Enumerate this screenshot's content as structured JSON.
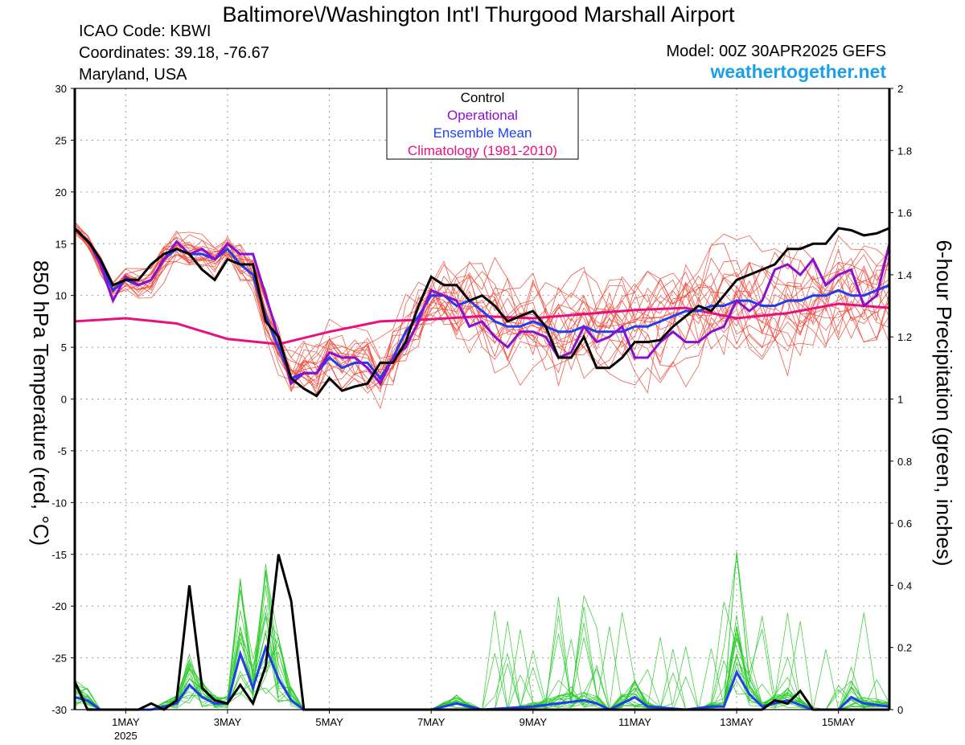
{
  "header": {
    "title": "Baltimore\\/Washington Int'l Thurgood Marshall Airport",
    "icao": "ICAO Code: KBWI",
    "coordinates": "Coordinates: 39.18, -76.67",
    "location": "Maryland, USA",
    "model": "Model: 00Z 30APR2025 GEFS",
    "site": "weathertogether.net"
  },
  "colors": {
    "control": "#000000",
    "operational": "#8a10d0",
    "ensemble_mean": "#1f3fef",
    "climatology": "#e8107f",
    "members_temp": "#f04a3a",
    "members_precip": "#2ecc2e",
    "site": "#1a9fe8"
  },
  "chart_data": {
    "type": "line",
    "left_axis": {
      "label": "850 hPa Temperature (red, °C)",
      "range": [
        -30,
        30
      ],
      "ticks": [
        "30",
        "25",
        "20",
        "15",
        "10",
        "5",
        "0",
        "-5",
        "-10",
        "-15",
        "-20",
        "-25",
        "-30"
      ]
    },
    "right_axis": {
      "label": "6-hour Precipitation (green, inches)",
      "range": [
        0,
        2
      ],
      "ticks": [
        "2",
        "1.8",
        "1.6",
        "1.4",
        "1.2",
        "1",
        "0.8",
        "0.6",
        "0.4",
        "0.2",
        "0"
      ]
    },
    "x_axis": {
      "range_days": [
        0,
        16
      ],
      "ticks": [
        {
          "label": "1MAY",
          "sub": "2025",
          "day": 1
        },
        {
          "label": "3MAY",
          "day": 3
        },
        {
          "label": "5MAY",
          "day": 5
        },
        {
          "label": "7MAY",
          "day": 7
        },
        {
          "label": "9MAY",
          "day": 9
        },
        {
          "label": "11MAY",
          "day": 11
        },
        {
          "label": "13MAY",
          "day": 13
        },
        {
          "label": "15MAY",
          "day": 15
        }
      ]
    },
    "grid": true,
    "legend": {
      "position": "top-center",
      "entries": [
        {
          "label": "Control",
          "color": "#000000"
        },
        {
          "label": "Operational",
          "color": "#8a10d0"
        },
        {
          "label": "Ensemble Mean",
          "color": "#1f3fef"
        },
        {
          "label": "Climatology (1981-2010)",
          "color": "#e8107f"
        }
      ]
    },
    "temperature_series": {
      "control": [
        [
          0,
          16.5
        ],
        [
          0.3,
          15
        ],
        [
          0.5,
          13.5
        ],
        [
          0.75,
          11
        ],
        [
          1,
          11.5
        ],
        [
          1.25,
          11.5
        ],
        [
          1.5,
          13
        ],
        [
          1.75,
          14
        ],
        [
          2,
          14.5
        ],
        [
          2.25,
          14
        ],
        [
          2.5,
          12.5
        ],
        [
          2.75,
          11.5
        ],
        [
          3,
          13.5
        ],
        [
          3.25,
          13
        ],
        [
          3.5,
          13
        ],
        [
          3.75,
          7.5
        ],
        [
          4,
          6
        ],
        [
          4.25,
          2
        ],
        [
          4.5,
          1
        ],
        [
          4.75,
          0.3
        ],
        [
          5,
          2
        ],
        [
          5.25,
          0.8
        ],
        [
          5.5,
          1.2
        ],
        [
          5.75,
          1.5
        ],
        [
          6,
          3.5
        ],
        [
          6.25,
          3.5
        ],
        [
          6.5,
          5.5
        ],
        [
          6.75,
          9
        ],
        [
          7,
          11.8
        ],
        [
          7.25,
          11
        ],
        [
          7.5,
          11
        ],
        [
          7.75,
          9.5
        ],
        [
          8,
          10
        ],
        [
          8.25,
          9
        ],
        [
          8.5,
          7.5
        ],
        [
          8.75,
          8
        ],
        [
          9,
          8.5
        ],
        [
          9.25,
          7
        ],
        [
          9.5,
          4
        ],
        [
          9.75,
          4
        ],
        [
          10,
          6
        ],
        [
          10.25,
          3
        ],
        [
          10.5,
          3
        ],
        [
          10.75,
          4
        ],
        [
          11,
          5.5
        ],
        [
          11.25,
          5.5
        ],
        [
          11.5,
          5.7
        ],
        [
          11.75,
          7
        ],
        [
          12,
          8
        ],
        [
          12.25,
          9
        ],
        [
          12.5,
          8.5
        ],
        [
          12.75,
          10
        ],
        [
          13,
          11.5
        ],
        [
          13.25,
          12
        ],
        [
          13.5,
          12.5
        ],
        [
          13.75,
          13
        ],
        [
          14,
          14.5
        ],
        [
          14.25,
          14.5
        ],
        [
          14.5,
          15
        ],
        [
          14.75,
          15
        ],
        [
          15,
          16.5
        ],
        [
          15.25,
          16.3
        ],
        [
          15.5,
          15.8
        ],
        [
          15.75,
          16
        ],
        [
          16,
          16.5
        ]
      ],
      "operational": [
        [
          0,
          16.5
        ],
        [
          0.3,
          15
        ],
        [
          0.5,
          13
        ],
        [
          0.75,
          9.5
        ],
        [
          1,
          11.8
        ],
        [
          1.25,
          11
        ],
        [
          1.5,
          11.5
        ],
        [
          1.75,
          13.5
        ],
        [
          2,
          15.2
        ],
        [
          2.25,
          14
        ],
        [
          2.5,
          14.5
        ],
        [
          2.75,
          13.5
        ],
        [
          3,
          15
        ],
        [
          3.25,
          14
        ],
        [
          3.5,
          14
        ],
        [
          3.75,
          10
        ],
        [
          4,
          6
        ],
        [
          4.25,
          1.5
        ],
        [
          4.5,
          2.5
        ],
        [
          4.75,
          2.5
        ],
        [
          5,
          4.5
        ],
        [
          5.25,
          4
        ],
        [
          5.5,
          4
        ],
        [
          5.75,
          3
        ],
        [
          6,
          1.5
        ],
        [
          6.25,
          4
        ],
        [
          6.5,
          5
        ],
        [
          6.75,
          7.5
        ],
        [
          7,
          10.5
        ],
        [
          7.25,
          10
        ],
        [
          7.5,
          9.5
        ],
        [
          7.75,
          7
        ],
        [
          8,
          7.5
        ],
        [
          8.25,
          6
        ],
        [
          8.5,
          5
        ],
        [
          8.75,
          6.5
        ],
        [
          9,
          6.5
        ],
        [
          9.25,
          6
        ],
        [
          9.5,
          4
        ],
        [
          9.75,
          4.5
        ],
        [
          10,
          7
        ],
        [
          10.25,
          5.5
        ],
        [
          10.5,
          6
        ],
        [
          10.75,
          7
        ],
        [
          11,
          4
        ],
        [
          11.25,
          4
        ],
        [
          11.5,
          5.5
        ],
        [
          11.75,
          6.5
        ],
        [
          12,
          5.5
        ],
        [
          12.25,
          5.5
        ],
        [
          12.5,
          6.5
        ],
        [
          12.75,
          7
        ],
        [
          13,
          9.5
        ],
        [
          13.25,
          8.5
        ],
        [
          13.5,
          9.5
        ],
        [
          13.75,
          12.5
        ],
        [
          14,
          13
        ],
        [
          14.25,
          12
        ],
        [
          14.5,
          13.5
        ],
        [
          14.75,
          11
        ],
        [
          15,
          12
        ],
        [
          15.25,
          12.5
        ],
        [
          15.5,
          9
        ],
        [
          15.75,
          10
        ],
        [
          16,
          15
        ]
      ],
      "ensemble_mean": [
        [
          0,
          16.5
        ],
        [
          0.3,
          15
        ],
        [
          0.5,
          13
        ],
        [
          0.75,
          10.5
        ],
        [
          1,
          11.5
        ],
        [
          1.25,
          11
        ],
        [
          1.5,
          11.5
        ],
        [
          1.75,
          13.5
        ],
        [
          2,
          14.5
        ],
        [
          2.25,
          14
        ],
        [
          2.5,
          14
        ],
        [
          2.75,
          13.5
        ],
        [
          3,
          14.5
        ],
        [
          3.25,
          13
        ],
        [
          3.5,
          12
        ],
        [
          3.75,
          8
        ],
        [
          4,
          5
        ],
        [
          4.25,
          2
        ],
        [
          4.5,
          2.5
        ],
        [
          4.75,
          2.5
        ],
        [
          5,
          4
        ],
        [
          5.25,
          3
        ],
        [
          5.5,
          3.5
        ],
        [
          5.75,
          3.5
        ],
        [
          6,
          2
        ],
        [
          6.25,
          4
        ],
        [
          6.5,
          6.5
        ],
        [
          6.75,
          8
        ],
        [
          7,
          10
        ],
        [
          7.25,
          10
        ],
        [
          7.5,
          9
        ],
        [
          7.75,
          9.5
        ],
        [
          8,
          8.5
        ],
        [
          8.25,
          7.5
        ],
        [
          8.5,
          7
        ],
        [
          8.75,
          7
        ],
        [
          9,
          7.5
        ],
        [
          9.25,
          7
        ],
        [
          9.5,
          6.5
        ],
        [
          9.75,
          6.5
        ],
        [
          10,
          7
        ],
        [
          10.25,
          6.5
        ],
        [
          10.5,
          6.5
        ],
        [
          10.75,
          6.5
        ],
        [
          11,
          7
        ],
        [
          11.25,
          7
        ],
        [
          11.5,
          7.5
        ],
        [
          11.75,
          8
        ],
        [
          12,
          8.5
        ],
        [
          12.25,
          8.5
        ],
        [
          12.5,
          9
        ],
        [
          12.75,
          9
        ],
        [
          13,
          9.5
        ],
        [
          13.25,
          9.5
        ],
        [
          13.5,
          9
        ],
        [
          13.75,
          9
        ],
        [
          14,
          9.5
        ],
        [
          14.25,
          9.5
        ],
        [
          14.5,
          10
        ],
        [
          14.75,
          10
        ],
        [
          15,
          10.5
        ],
        [
          15.25,
          10
        ],
        [
          15.5,
          10
        ],
        [
          15.75,
          10.5
        ],
        [
          16,
          11
        ]
      ],
      "climatology": [
        [
          0,
          7.5
        ],
        [
          1,
          7.8
        ],
        [
          2,
          7.3
        ],
        [
          3,
          5.8
        ],
        [
          4,
          5.3
        ],
        [
          5,
          6.5
        ],
        [
          6,
          7.5
        ],
        [
          7,
          7.7
        ],
        [
          8,
          8
        ],
        [
          9,
          7.8
        ],
        [
          10,
          8.2
        ],
        [
          11,
          8.6
        ],
        [
          12,
          8.8
        ],
        [
          13,
          7.8
        ],
        [
          14,
          8.3
        ],
        [
          15,
          9.2
        ],
        [
          16,
          8.8
        ]
      ]
    },
    "precipitation_series": {
      "control": [
        [
          0,
          0.09
        ],
        [
          0.25,
          0.0
        ],
        [
          0.5,
          0.0
        ],
        [
          0.75,
          0.0
        ],
        [
          1,
          0.0
        ],
        [
          1.25,
          0.0
        ],
        [
          1.5,
          0.02
        ],
        [
          1.75,
          0.0
        ],
        [
          2,
          0.03
        ],
        [
          2.25,
          0.4
        ],
        [
          2.5,
          0.07
        ],
        [
          2.75,
          0.03
        ],
        [
          3,
          0.02
        ],
        [
          3.25,
          0.08
        ],
        [
          3.5,
          0.02
        ],
        [
          3.75,
          0.14
        ],
        [
          4,
          0.5
        ],
        [
          4.25,
          0.35
        ],
        [
          4.5,
          0.0
        ],
        [
          5,
          0.0
        ],
        [
          10,
          0.0
        ],
        [
          13,
          0.0
        ],
        [
          13.5,
          0.0
        ],
        [
          13.75,
          0.03
        ],
        [
          14,
          0.02
        ],
        [
          14.25,
          0.06
        ],
        [
          14.5,
          0.0
        ],
        [
          16,
          0.0
        ]
      ],
      "ensemble_mean": [
        [
          0,
          0.04
        ],
        [
          0.25,
          0.03
        ],
        [
          0.5,
          0.0
        ],
        [
          1,
          0.0
        ],
        [
          1.5,
          0.0
        ],
        [
          2,
          0.02
        ],
        [
          2.25,
          0.08
        ],
        [
          2.5,
          0.04
        ],
        [
          2.75,
          0.02
        ],
        [
          3,
          0.02
        ],
        [
          3.25,
          0.18
        ],
        [
          3.5,
          0.07
        ],
        [
          3.75,
          0.2
        ],
        [
          4,
          0.1
        ],
        [
          4.25,
          0.03
        ],
        [
          4.5,
          0.0
        ],
        [
          7,
          0.0
        ],
        [
          7.5,
          0.02
        ],
        [
          8,
          0.0
        ],
        [
          9,
          0.01
        ],
        [
          10,
          0.03
        ],
        [
          10.25,
          0.02
        ],
        [
          10.5,
          0.0
        ],
        [
          11,
          0.04
        ],
        [
          11.25,
          0.01
        ],
        [
          12,
          0.0
        ],
        [
          12.5,
          0.01
        ],
        [
          12.75,
          0.01
        ],
        [
          13,
          0.12
        ],
        [
          13.25,
          0.05
        ],
        [
          13.5,
          0.01
        ],
        [
          14,
          0.03
        ],
        [
          14.5,
          0.0
        ],
        [
          15,
          0.0
        ],
        [
          15.25,
          0.04
        ],
        [
          15.5,
          0.02
        ],
        [
          16,
          0.01
        ]
      ]
    }
  }
}
